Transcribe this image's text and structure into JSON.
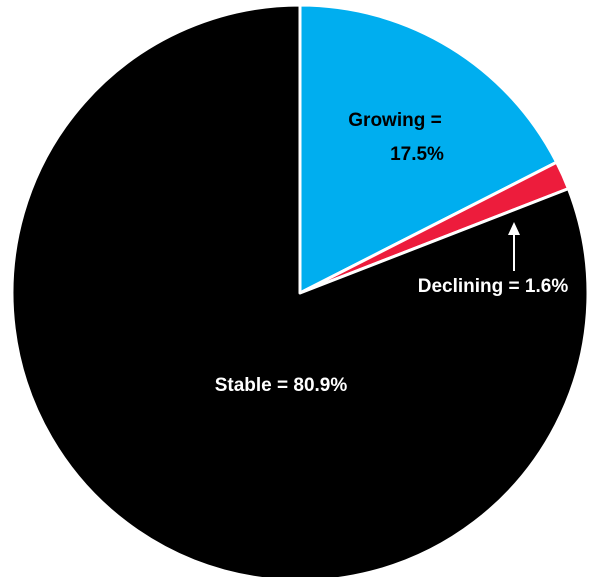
{
  "chart_data": {
    "type": "pie",
    "title": "",
    "slices": [
      {
        "label": "Growing",
        "value": 17.5,
        "color": "#00AEEF",
        "label_lines": [
          "Growing =",
          "17.5%"
        ],
        "label_color": "#000000"
      },
      {
        "label": "Declining",
        "value": 1.6,
        "color": "#ED1C3C",
        "label_lines": [
          "Declining = 1.6%"
        ],
        "label_color": "#ffffff"
      },
      {
        "label": "Stable",
        "value": 80.9,
        "color": "#000000",
        "label_lines": [
          "Stable = 80.9%"
        ],
        "label_color": "#ffffff"
      }
    ],
    "start_angle": "12 o'clock",
    "direction": "clockwise",
    "legend": "none",
    "annotations": [
      "arrow pointing from 'Declining = 1.6%' to the Declining slice"
    ]
  }
}
